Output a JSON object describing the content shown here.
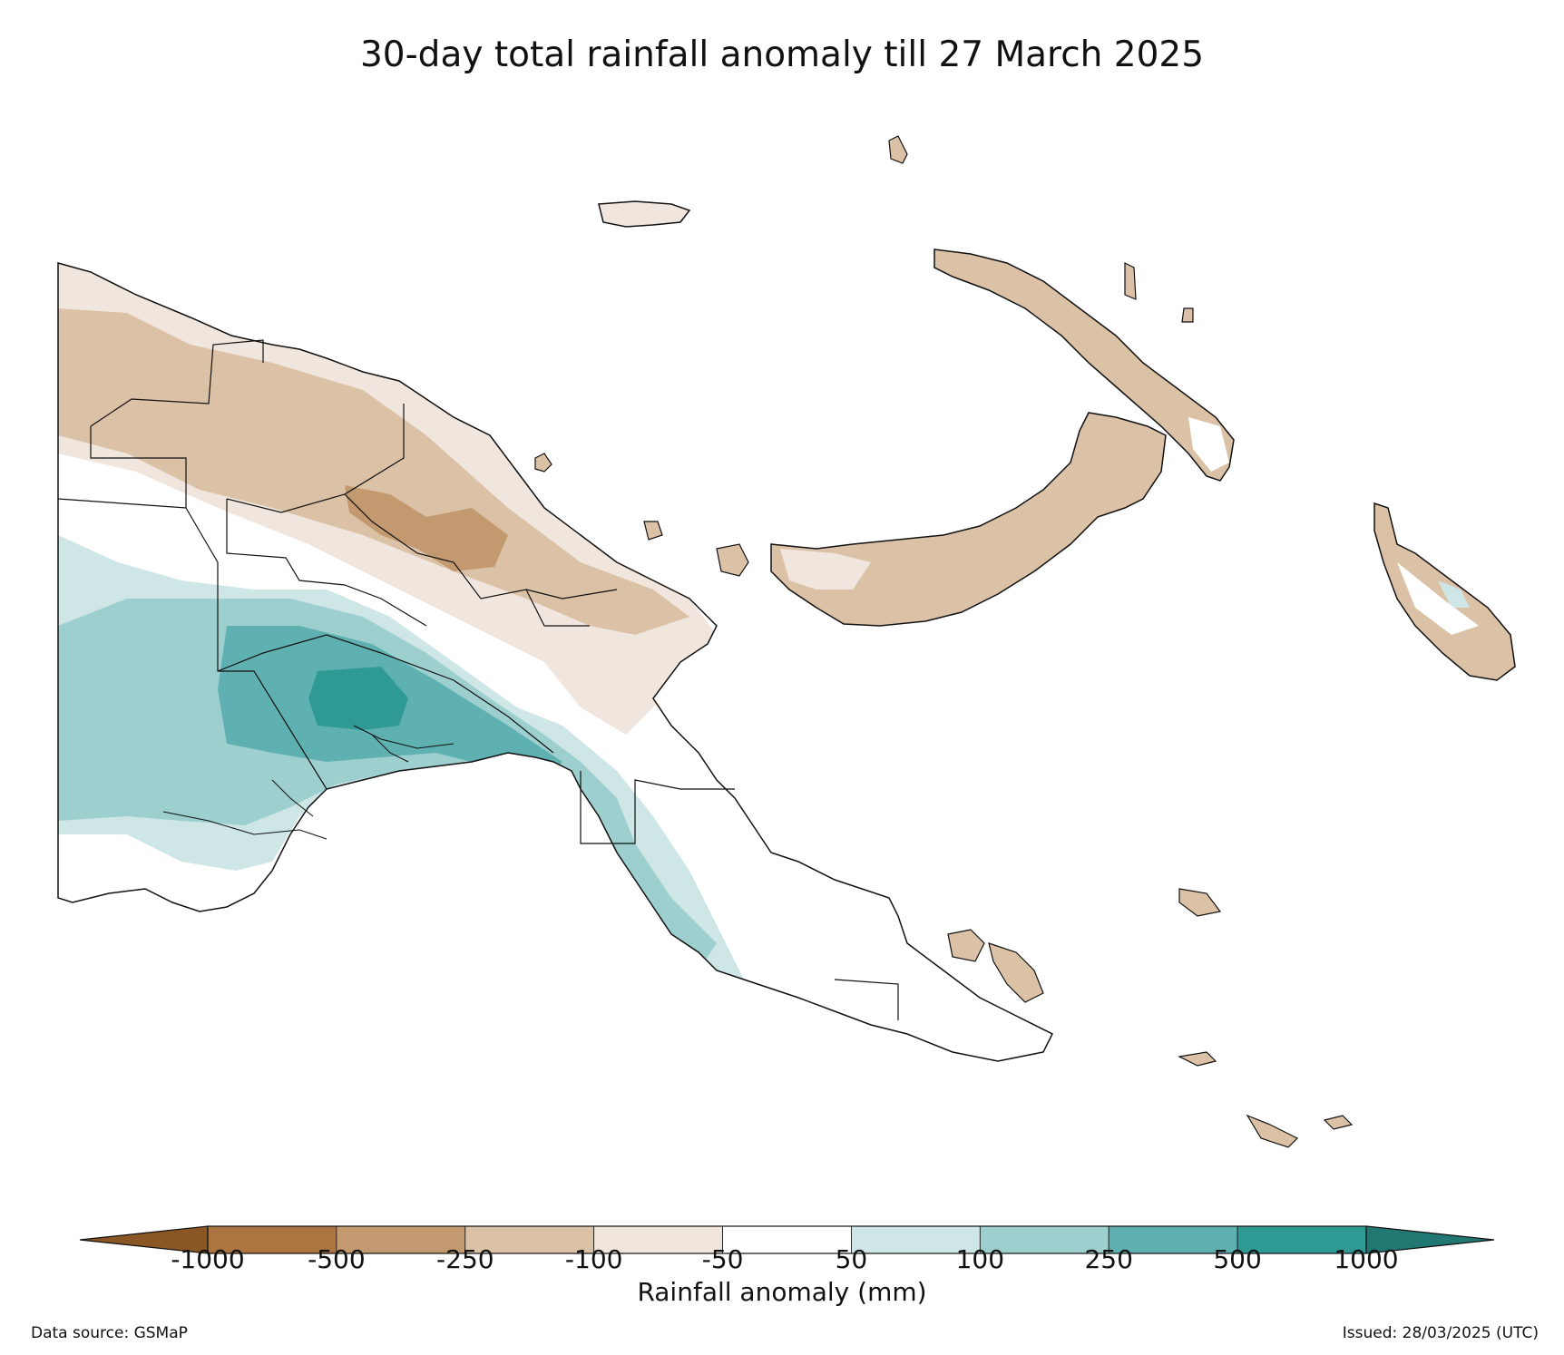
{
  "title": "30-day total rainfall anomaly till 27 March 2025",
  "colorbar": {
    "label": "Rainfall anomaly (mm)",
    "ticks": [
      "-1000",
      "-500",
      "-250",
      "-100",
      "-50",
      "50",
      "100",
      "250",
      "500",
      "1000"
    ],
    "colors": [
      "#8a5624",
      "#ab7440",
      "#c39a6f",
      "#dbc1a6",
      "#f1e6dd",
      "#ffffff",
      "#cfe6e6",
      "#9dcfcf",
      "#5fb1b1",
      "#2f9994",
      "#217873"
    ]
  },
  "footer": {
    "source": "Data source: GSMaP",
    "issued": "Issued: 28/03/2025 (UTC)"
  },
  "legend_colors": {
    "dry_strong": "#c39a6f",
    "dry_moderate": "#dbc1a6",
    "dry_light": "#f1e6dd",
    "wet_light": "#cfe6e6",
    "wet_moderate": "#9dcfcf",
    "wet_high": "#5fb1b1",
    "wet_extreme": "#2f9994",
    "border": "#111111"
  }
}
